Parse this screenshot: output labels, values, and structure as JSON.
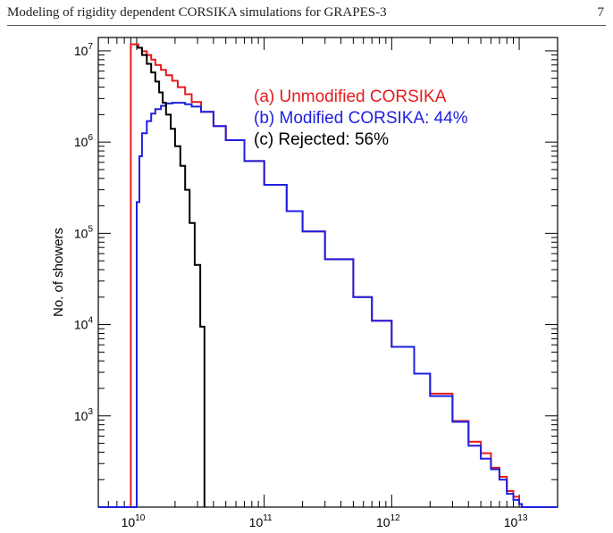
{
  "header": {
    "title": "Modeling of rigidity dependent CORSIKA simulations for GRAPES-3",
    "page_number": "7"
  },
  "colors": {
    "unmodified": "#e41a1c",
    "modified": "#1f1fe0",
    "rejected": "#000000",
    "axis": "#000000"
  },
  "chart_data": {
    "type": "line",
    "step": true,
    "xscale": "log",
    "yscale": "log",
    "xlim": [
      5000000000.0,
      20000000000000.0
    ],
    "ylim": [
      100,
      14000000
    ],
    "xlabel": "",
    "ylabel": "No. of showers",
    "grid": false,
    "legend_position": "top-right",
    "x_ticks": [
      {
        "value": 10000000000.0,
        "base": "10",
        "exp": "10"
      },
      {
        "value": 100000000000.0,
        "base": "10",
        "exp": "11"
      },
      {
        "value": 1000000000000.0,
        "base": "10",
        "exp": "12"
      },
      {
        "value": 10000000000000.0,
        "base": "10",
        "exp": "13"
      }
    ],
    "y_ticks": [
      {
        "value": 1000,
        "base": "10",
        "exp": "3"
      },
      {
        "value": 10000,
        "base": "10",
        "exp": "4"
      },
      {
        "value": 100000,
        "base": "10",
        "exp": "5"
      },
      {
        "value": 1000000,
        "base": "10",
        "exp": "6"
      },
      {
        "value": 10000000,
        "base": "10",
        "exp": "7"
      }
    ],
    "series": [
      {
        "name": "(a) Unmodified CORSIKA",
        "color_key": "unmodified",
        "points": [
          [
            5000000000.0,
            100
          ],
          [
            9000000000.0,
            100
          ],
          [
            9000000000.0,
            11800000
          ],
          [
            9600000000.0,
            11800000
          ],
          [
            10300000000.0,
            10800000
          ],
          [
            11000000000.0,
            9900000
          ],
          [
            12000000000.0,
            9000000
          ],
          [
            13000000000.0,
            8000000
          ],
          [
            14000000000.0,
            7000000
          ],
          [
            15500000000.0,
            6200000
          ],
          [
            17000000000.0,
            5400000
          ],
          [
            19000000000.0,
            4700000
          ],
          [
            21000000000.0,
            4000000
          ],
          [
            24000000000.0,
            3350000
          ],
          [
            27000000000.0,
            2750000
          ],
          [
            32000000000.0,
            2150000
          ],
          [
            40000000000.0,
            1500000
          ],
          [
            50000000000.0,
            1050000
          ],
          [
            70000000000.0,
            620000
          ],
          [
            100000000000.0,
            340000
          ],
          [
            150000000000.0,
            175000
          ],
          [
            200000000000.0,
            105000
          ],
          [
            300000000000.0,
            52000
          ],
          [
            500000000000.0,
            20000
          ],
          [
            700000000000.0,
            11000
          ],
          [
            1000000000000.0,
            5700
          ],
          [
            1500000000000.0,
            2900
          ],
          [
            2000000000000.0,
            1750
          ],
          [
            3000000000000.0,
            880
          ],
          [
            4000000000000.0,
            520
          ],
          [
            5000000000000.0,
            390
          ],
          [
            6000000000000.0,
            270
          ],
          [
            7000000000000.0,
            215
          ],
          [
            8000000000000.0,
            150
          ],
          [
            9000000000000.0,
            130
          ],
          [
            10000000000000.0,
            108
          ],
          [
            10500000000000.0,
            100
          ],
          [
            20000000000000.0,
            100
          ]
        ]
      },
      {
        "name": "(b) Modified CORSIKA: 44%",
        "color_key": "modified",
        "points": [
          [
            5000000000.0,
            100
          ],
          [
            10000000000.0,
            100
          ],
          [
            10000000000.0,
            220000
          ],
          [
            10500000000.0,
            700000
          ],
          [
            11000000000.0,
            1250000
          ],
          [
            12000000000.0,
            1700000
          ],
          [
            13000000000.0,
            2050000
          ],
          [
            14000000000.0,
            2300000
          ],
          [
            15500000000.0,
            2500000
          ],
          [
            17000000000.0,
            2650000
          ],
          [
            19000000000.0,
            2700000
          ],
          [
            21000000000.0,
            2700000
          ],
          [
            24000000000.0,
            2600000
          ],
          [
            27000000000.0,
            2450000
          ],
          [
            32000000000.0,
            2150000
          ],
          [
            40000000000.0,
            1500000
          ],
          [
            50000000000.0,
            1050000
          ],
          [
            70000000000.0,
            620000
          ],
          [
            100000000000.0,
            340000
          ],
          [
            150000000000.0,
            175000
          ],
          [
            200000000000.0,
            105000
          ],
          [
            300000000000.0,
            52000
          ],
          [
            500000000000.0,
            20000
          ],
          [
            700000000000.0,
            11000
          ],
          [
            1000000000000.0,
            5700
          ],
          [
            1500000000000.0,
            2900
          ],
          [
            2000000000000.0,
            1650
          ],
          [
            3000000000000.0,
            860
          ],
          [
            4000000000000.0,
            470
          ],
          [
            5000000000000.0,
            340
          ],
          [
            6000000000000.0,
            260
          ],
          [
            7000000000000.0,
            200
          ],
          [
            8000000000000.0,
            140
          ],
          [
            9000000000000.0,
            120
          ],
          [
            10000000000000.0,
            108
          ],
          [
            10500000000000.0,
            100
          ],
          [
            20000000000000.0,
            100
          ]
        ]
      },
      {
        "name": "(c) Rejected: 56%",
        "color_key": "rejected",
        "points": [
          [
            10000000000.0,
            11000000
          ],
          [
            10300000000.0,
            10800000
          ],
          [
            11000000000.0,
            9000000
          ],
          [
            12000000000.0,
            7200000
          ],
          [
            13000000000.0,
            5800000
          ],
          [
            14000000000.0,
            4600000
          ],
          [
            15000000000.0,
            3500000
          ],
          [
            16000000000.0,
            2700000
          ],
          [
            17000000000.0,
            2000000
          ],
          [
            18500000000.0,
            1400000
          ],
          [
            20000000000.0,
            900000
          ],
          [
            22000000000.0,
            550000
          ],
          [
            24000000000.0,
            300000
          ],
          [
            26000000000.0,
            130000
          ],
          [
            28500000000.0,
            45000
          ],
          [
            31500000000.0,
            9500
          ],
          [
            34000000000.0,
            100
          ]
        ]
      }
    ]
  }
}
